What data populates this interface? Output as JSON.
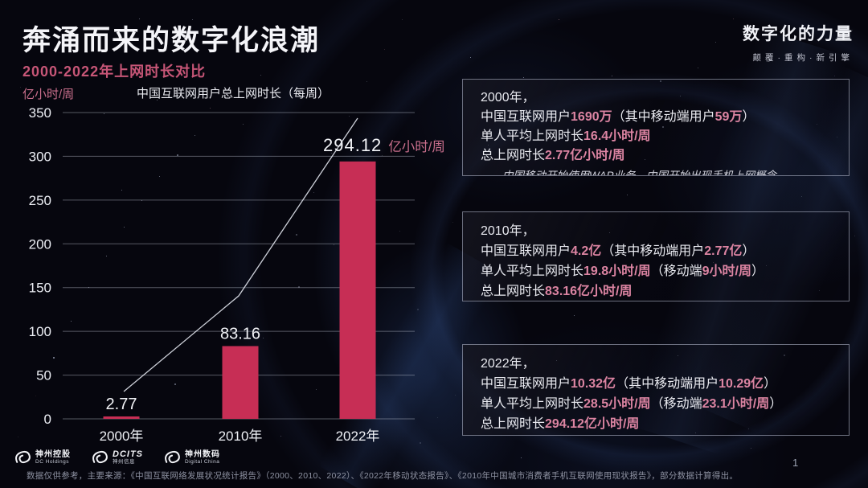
{
  "header": {
    "title": "奔涌而来的数字化浪潮",
    "subtitle": "2000-2022年上网时长对比",
    "brand_title": "数字化的力量",
    "brand_tagline": "颠覆·重构·新引擎"
  },
  "chart_data": {
    "type": "bar",
    "title": "中国互联网用户总上网时长（每周）",
    "ylabel": "亿小时/周",
    "unit_suffix": "亿小时/周",
    "categories": [
      "2000年",
      "2010年",
      "2022年"
    ],
    "values": [
      2.77,
      83.16,
      294.12
    ],
    "bar_labels": [
      "2.77",
      "83.16",
      "294.12"
    ],
    "ylim": [
      0,
      350
    ],
    "ytick_step": 50,
    "grid": true,
    "legend": "none",
    "bar_color": "#c72e55",
    "trend_line": true
  },
  "info_boxes": [
    {
      "year": "2000年，",
      "lines": [
        [
          {
            "t": "中国互联网用户"
          },
          {
            "t": "1690万",
            "hl": true
          },
          {
            "t": "（其中移动端用户"
          },
          {
            "t": "59万",
            "hl": true
          },
          {
            "t": "）"
          }
        ],
        [
          {
            "t": "单人平均上网时长"
          },
          {
            "t": "16.4小时/周",
            "hl": true
          }
        ],
        [
          {
            "t": "总上网时长"
          },
          {
            "t": "2.77亿小时/周",
            "hl": true
          }
        ]
      ],
      "note": "——中国移动开始使用WAP业务，中国开始出现手机上网概念"
    },
    {
      "year": "2010年，",
      "lines": [
        [
          {
            "t": "中国互联网用户"
          },
          {
            "t": "4.2亿",
            "hl": true
          },
          {
            "t": "（其中移动端用户"
          },
          {
            "t": "2.77亿",
            "hl": true
          },
          {
            "t": "）"
          }
        ],
        [
          {
            "t": "单人平均上网时长"
          },
          {
            "t": "19.8小时/周",
            "hl": true
          },
          {
            "t": "（移动端"
          },
          {
            "t": "9小时/周",
            "hl": true
          },
          {
            "t": "）"
          }
        ],
        [
          {
            "t": "总上网时长"
          },
          {
            "t": "83.16亿小时/周",
            "hl": true
          }
        ]
      ],
      "note": ""
    },
    {
      "year": "2022年，",
      "lines": [
        [
          {
            "t": "中国互联网用户"
          },
          {
            "t": "10.32亿",
            "hl": true
          },
          {
            "t": "（其中移动端用户"
          },
          {
            "t": "10.29亿",
            "hl": true
          },
          {
            "t": "）"
          }
        ],
        [
          {
            "t": "单人平均上网时长"
          },
          {
            "t": "28.5小时/周",
            "hl": true
          },
          {
            "t": "（移动端"
          },
          {
            "t": "23.1小时/周",
            "hl": true
          },
          {
            "t": "）"
          }
        ],
        [
          {
            "t": "总上网时长"
          },
          {
            "t": "294.12亿小时/周",
            "hl": true
          }
        ]
      ],
      "note": ""
    }
  ],
  "footer": {
    "logos": [
      {
        "line1": "神州控股",
        "line2": "DC Holdings"
      },
      {
        "line1": "DCITS",
        "line2": "神州信息"
      },
      {
        "line1": "神州数码",
        "line2": "Digital China"
      }
    ],
    "source": "数据仅供参考，主要来源：《中国互联网络发展状况统计报告》（2000、2010、2022）、《2022年移动状态报告》、《2010年中国城市消费者手机互联网使用现状报告》，部分数据计算得出。",
    "page_number": "1"
  },
  "colors": {
    "accent_pink": "#c75677",
    "highlight_pink": "#dc84a2",
    "bar_red": "#c72e55",
    "background": "#06060e"
  }
}
